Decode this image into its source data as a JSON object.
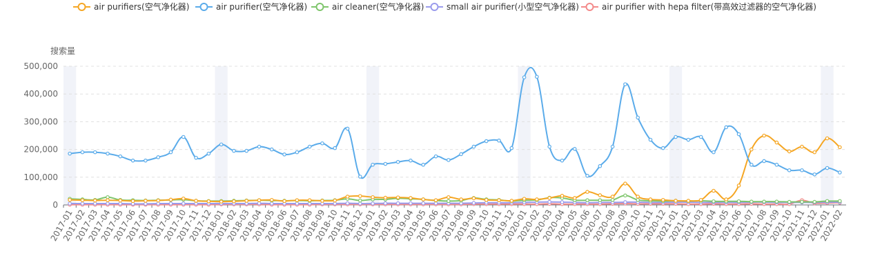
{
  "chart_data": {
    "type": "line",
    "ylabel": "搜索量",
    "ylim": [
      0,
      500000
    ],
    "yticks": [
      "0",
      "100,000",
      "200,000",
      "300,000",
      "400,000",
      "500,000"
    ],
    "ytick_values": [
      0,
      100000,
      200000,
      300000,
      400000,
      500000
    ],
    "grid": "horizontal dashed",
    "legend_position": "top",
    "highlighted_months": [
      "2017-01",
      "2018-01",
      "2019-01",
      "2020-01",
      "2021-01",
      "2022-01"
    ],
    "categories": [
      "2017-01",
      "2017-02",
      "2017-03",
      "2017-04",
      "2017-05",
      "2017-06",
      "2017-07",
      "2017-08",
      "2017-09",
      "2017-10",
      "2017-11",
      "2017-12",
      "2018-01",
      "2018-02",
      "2018-03",
      "2018-04",
      "2018-05",
      "2018-06",
      "2018-07",
      "2018-08",
      "2018-09",
      "2018-10",
      "2018-11",
      "2018-12",
      "2019-01",
      "2019-02",
      "2019-03",
      "2019-04",
      "2019-05",
      "2019-06",
      "2019-07",
      "2019-08",
      "2019-09",
      "2019-10",
      "2019-11",
      "2019-12",
      "2020-01",
      "2020-02",
      "2020-03",
      "2020-04",
      "2020-05",
      "2020-06",
      "2020-07",
      "2020-08",
      "2020-09",
      "2020-10",
      "2020-11",
      "2020-12",
      "2021-01",
      "2021-02",
      "2021-03",
      "2021-04",
      "2021-05",
      "2021-06",
      "2021-07",
      "2021-08",
      "2021-09",
      "2021-10",
      "2021-11",
      "2021-12",
      "2022-01",
      "2022-02"
    ],
    "series": [
      {
        "name": "air purifiers(空气净化器)",
        "color": "#f5a623",
        "values": [
          18000,
          17000,
          16000,
          17000,
          16000,
          14000,
          15000,
          16000,
          19000,
          23000,
          15000,
          13000,
          12000,
          13000,
          15000,
          17000,
          18000,
          14000,
          17000,
          17000,
          15000,
          16000,
          30000,
          32000,
          28000,
          26000,
          27000,
          25000,
          20000,
          17000,
          28000,
          20000,
          24000,
          18000,
          17000,
          15000,
          22000,
          20000,
          25000,
          33000,
          25000,
          47000,
          35000,
          30000,
          77000,
          30000,
          20000,
          18000,
          15000,
          15000,
          18000,
          51000,
          20000,
          70000,
          200000,
          250000,
          225000,
          193000,
          210000,
          190000,
          240000,
          208000
        ]
      },
      {
        "name": "air purifier(空气净化器)",
        "color": "#5aabea",
        "values": [
          185000,
          190000,
          190000,
          185000,
          175000,
          160000,
          160000,
          172000,
          190000,
          245000,
          170000,
          185000,
          218000,
          195000,
          195000,
          210000,
          200000,
          182000,
          190000,
          210000,
          222000,
          205000,
          275000,
          102000,
          145000,
          148000,
          155000,
          160000,
          145000,
          175000,
          162000,
          183000,
          210000,
          230000,
          232000,
          205000,
          460000,
          462000,
          210000,
          160000,
          202000,
          105000,
          140000,
          210000,
          435000,
          315000,
          235000,
          205000,
          245000,
          235000,
          245000,
          190000,
          280000,
          255000,
          145000,
          158000,
          145000,
          125000,
          125000,
          110000,
          133000,
          117000
        ]
      },
      {
        "name": "air cleaner(空气净化器)",
        "color": "#7ec56b",
        "values": [
          22000,
          20000,
          18000,
          28000,
          18000,
          17000,
          16000,
          17000,
          18000,
          19000,
          15000,
          14000,
          14000,
          15000,
          16000,
          17000,
          16000,
          15000,
          16000,
          15000,
          16000,
          17000,
          22000,
          16000,
          20000,
          20000,
          24000,
          22000,
          20000,
          16000,
          14000,
          16000,
          25000,
          20000,
          18000,
          14000,
          17000,
          18000,
          26000,
          25000,
          17000,
          17000,
          17000,
          18000,
          34000,
          18000,
          15000,
          14000,
          15000,
          14000,
          15000,
          13000,
          13000,
          13000,
          12000,
          12000,
          12000,
          11000,
          11000,
          11000,
          14000,
          14000
        ]
      },
      {
        "name": "small air purifier(小型空气净化器)",
        "color": "#9a9bec",
        "values": [
          5000,
          5000,
          5000,
          5000,
          5000,
          4000,
          4000,
          5000,
          5000,
          5000,
          5000,
          5000,
          5000,
          5000,
          5000,
          6000,
          5000,
          5000,
          5000,
          5000,
          5000,
          5000,
          6000,
          5000,
          5000,
          6000,
          6000,
          6000,
          6000,
          6000,
          6000,
          6000,
          7000,
          8000,
          8000,
          8000,
          9000,
          10000,
          11000,
          10000,
          9000,
          8000,
          9000,
          9000,
          10000,
          10000,
          9000,
          9000,
          10000,
          10000,
          9000,
          9000,
          9000,
          9000,
          10000,
          10000,
          9000,
          9000,
          9000,
          9000,
          10000,
          10000
        ]
      },
      {
        "name": "air purifier with hepa filter(带高效过滤器的空气净化器)",
        "color": "#f38a8a",
        "values": [
          1000,
          1000,
          1000,
          1000,
          1000,
          1000,
          1000,
          1000,
          1000,
          1000,
          1000,
          1000,
          2000,
          2000,
          2000,
          2000,
          1000,
          1000,
          1000,
          1000,
          2000,
          2000,
          2000,
          2000,
          2000,
          2000,
          2000,
          2000,
          2000,
          2000,
          2000,
          2000,
          3000,
          3000,
          3000,
          3000,
          3000,
          3000,
          4000,
          3000,
          3000,
          3000,
          3000,
          4000,
          5000,
          4000,
          4000,
          4000,
          4000,
          3000,
          3000,
          4000,
          3000,
          3000,
          4000,
          3000,
          3000,
          3000,
          17000,
          6000,
          7000,
          8000
        ]
      }
    ]
  }
}
